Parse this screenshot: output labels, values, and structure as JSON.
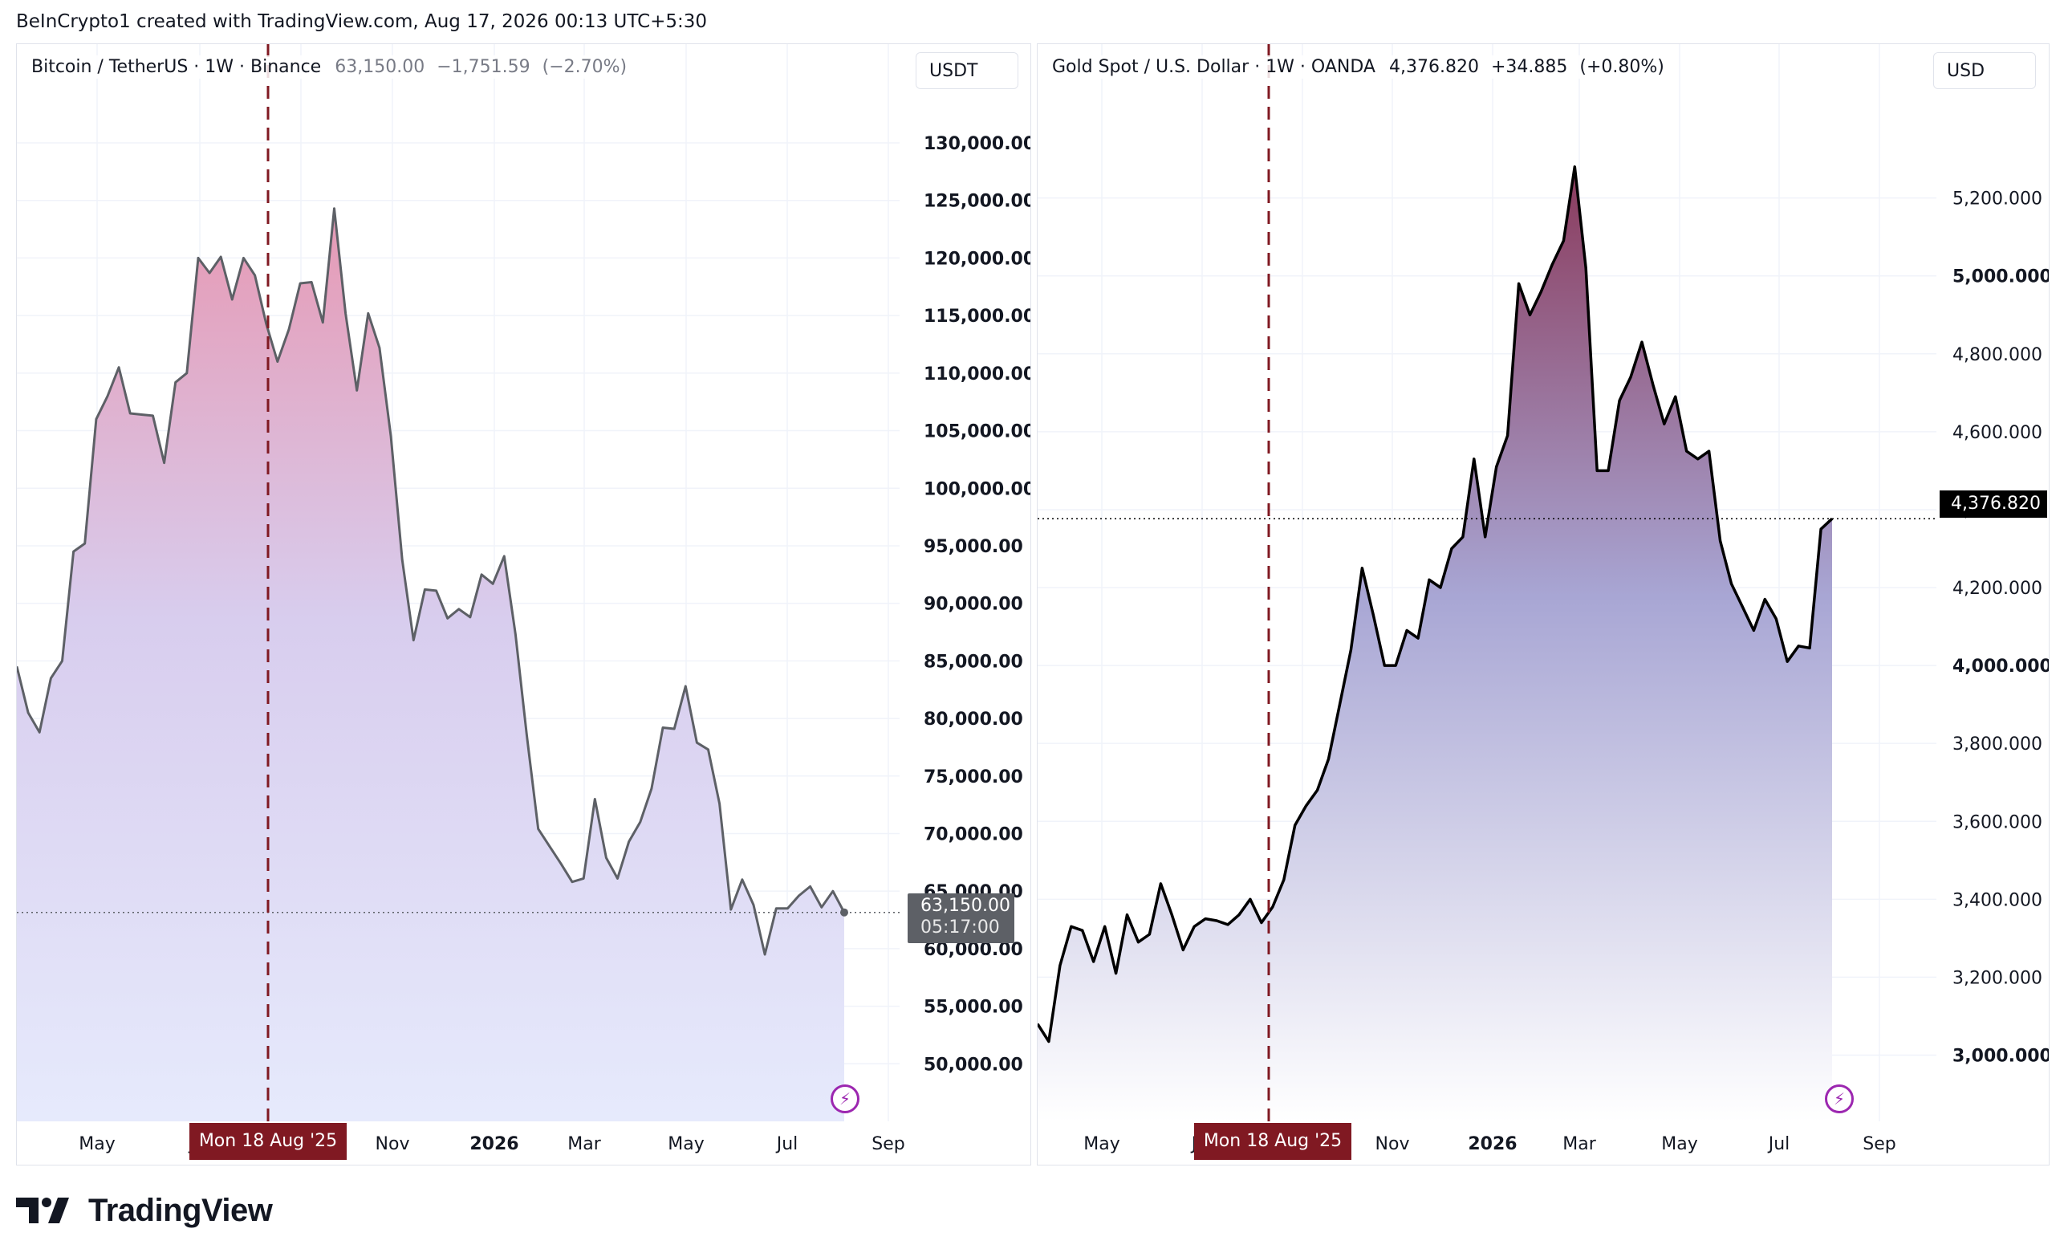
{
  "attribution": "BeInCrypto1 created with TradingView.com, Aug 17, 2026 00:13 UTC+5:30",
  "brand": "TradingView",
  "colors": {
    "btc_line": "#5d6066",
    "gold_line": "#000000",
    "marker_line": "#801922",
    "btc_area_top": "#e699b4",
    "btc_area_mid": "#d8cdee",
    "btc_area_bottom": "#e6eafc",
    "gold_area_top": "#8a3a5c",
    "gold_area_mid": "#a8a6d4",
    "gold_area_bottom": "#ffffff",
    "grid": "#f0f3fa",
    "axis_text": "#131722",
    "marker_badge": "#801922"
  },
  "icons": {
    "lightning": "lightning-bolt-icon",
    "logo": "tradingview-logo-icon"
  },
  "chart_data": [
    {
      "type": "area",
      "symbol": "Bitcoin / TetherUS",
      "interval": "1W",
      "exchange": "Binance",
      "last": "63,150.00",
      "change": "−1,751.59",
      "change_pct": "(−2.70%)",
      "currency": "USDT",
      "ylim": [
        45000,
        133000
      ],
      "y_ticks": [
        "50,000.00",
        "55,000.00",
        "60,000.00",
        "65,000.00",
        "70,000.00",
        "75,000.00",
        "80,000.00",
        "85,000.00",
        "90,000.00",
        "95,000.00",
        "100,000.00",
        "105,000.00",
        "110,000.00",
        "115,000.00",
        "120,000.00",
        "125,000.00",
        "130,000.00"
      ],
      "x_ticks": [
        "May",
        "Jul",
        "Sep",
        "Nov",
        "2026",
        "Mar",
        "May",
        "Jul",
        "Sep"
      ],
      "x_ticks_bold": [
        "2026"
      ],
      "marker_label": "Mon 18 Aug '25",
      "last_price_label": "63,150.00",
      "countdown_label": "05:17:00",
      "grid": true,
      "values": [
        84500,
        80500,
        78800,
        83500,
        85000,
        94500,
        95200,
        106000,
        108000,
        110500,
        106500,
        106400,
        106300,
        102200,
        109200,
        110000,
        120000,
        118700,
        120100,
        116400,
        120000,
        118500,
        114300,
        111000,
        113800,
        117800,
        117900,
        114400,
        124300,
        115200,
        108500,
        115200,
        112200,
        104500,
        93800,
        86800,
        91200,
        91100,
        88700,
        89500,
        88800,
        92500,
        91700,
        94100,
        87300,
        78500,
        70400,
        68900,
        67400,
        65800,
        66100,
        73000,
        67900,
        66100,
        69300,
        71000,
        73900,
        79200,
        79100,
        82800,
        77900,
        77300,
        72600,
        63400,
        66000,
        63800,
        59500,
        63500,
        63500,
        64600,
        65400,
        63600,
        65000,
        63150
      ]
    },
    {
      "type": "area",
      "symbol": "Gold Spot / U.S. Dollar",
      "interval": "1W",
      "exchange": "OANDA",
      "last": "4,376.820",
      "change": "+34.885",
      "change_pct": "(+0.80%)",
      "currency": "USD",
      "ylim": [
        2830,
        5430
      ],
      "y_ticks": [
        "3,000.000",
        "3,200.000",
        "3,400.000",
        "3,600.000",
        "3,800.000",
        "4,000.000",
        "4,200.000",
        "4,400.000",
        "4,600.000",
        "4,800.000",
        "5,000.000",
        "5,200.000"
      ],
      "y_ticks_bold": [
        "3,000.000",
        "4,000.000",
        "5,000.000"
      ],
      "x_ticks": [
        "May",
        "Jul",
        "Sep",
        "Nov",
        "2026",
        "Mar",
        "May",
        "Jul",
        "Sep"
      ],
      "x_ticks_bold": [
        "2026"
      ],
      "marker_label": "Mon 18 Aug '25",
      "last_price_label": "4,376.820",
      "grid": true,
      "values": [
        3080,
        3035,
        3230,
        3330,
        3320,
        3240,
        3330,
        3210,
        3360,
        3290,
        3310,
        3440,
        3360,
        3270,
        3330,
        3350,
        3345,
        3335,
        3360,
        3400,
        3340,
        3380,
        3450,
        3590,
        3640,
        3680,
        3760,
        3900,
        4040,
        4250,
        4130,
        4000,
        4000,
        4090,
        4070,
        4220,
        4200,
        4300,
        4330,
        4530,
        4330,
        4510,
        4590,
        4980,
        4900,
        4960,
        5030,
        5090,
        5280,
        5020,
        4500,
        4500,
        4680,
        4740,
        4830,
        4720,
        4620,
        4690,
        4550,
        4530,
        4550,
        4320,
        4210,
        4150,
        4090,
        4170,
        4120,
        4010,
        4050,
        4045,
        4350,
        4376.82
      ]
    }
  ]
}
